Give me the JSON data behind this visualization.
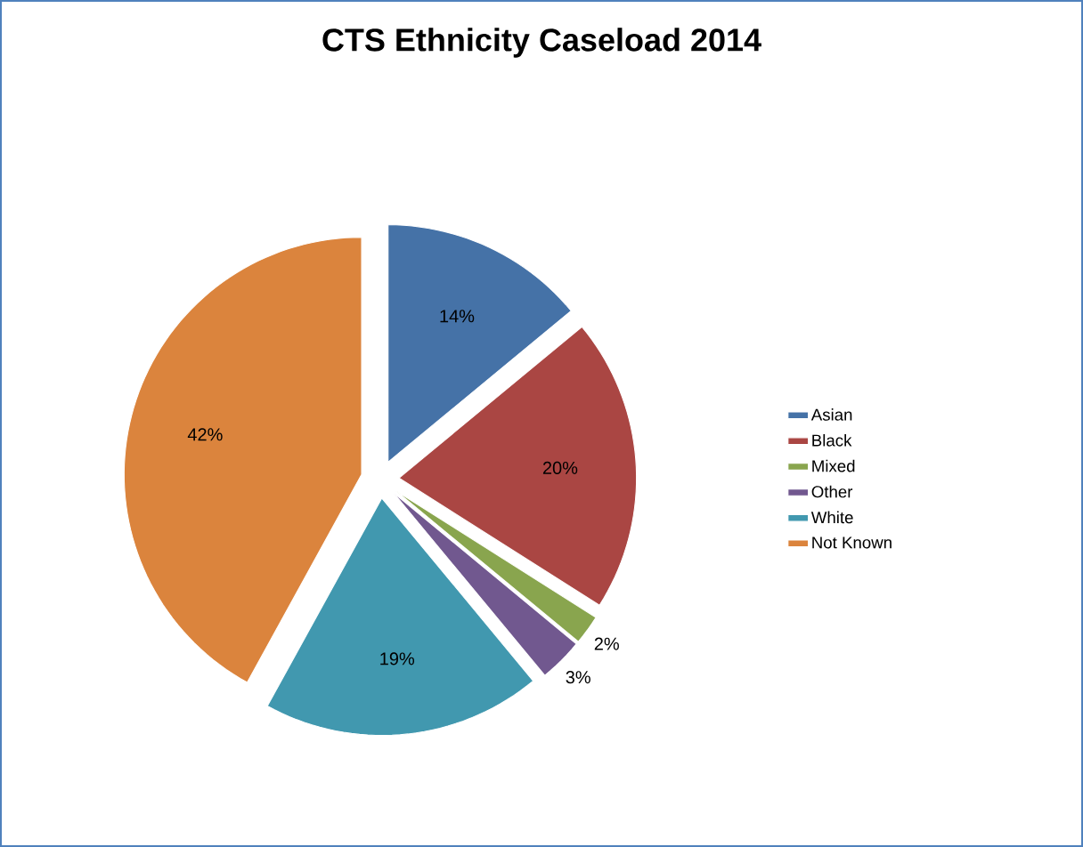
{
  "chart_data": {
    "type": "pie",
    "title": "CTS Ethnicity Caseload 2014",
    "categories": [
      "Asian",
      "Black",
      "Mixed",
      "Other",
      "White",
      "Not Known"
    ],
    "values": [
      14,
      20,
      2,
      3,
      19,
      42
    ],
    "value_labels": [
      "14%",
      "20%",
      "2%",
      "3%",
      "19%",
      "42%"
    ],
    "colors": [
      "#4572a7",
      "#aa4643",
      "#89a54e",
      "#71588f",
      "#4198af",
      "#db843d"
    ],
    "legend": "right"
  }
}
